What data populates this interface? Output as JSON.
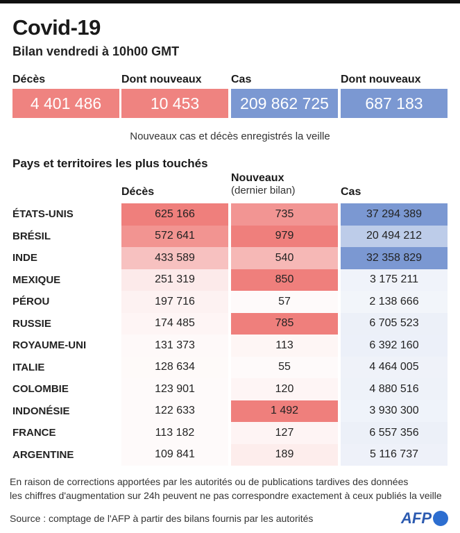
{
  "title": "Covid-19",
  "subtitle": "Bilan vendredi à 10h00 GMT",
  "colors": {
    "red": "#ef7f7c",
    "blue": "#7b98d2",
    "light_blue": "#e8ecf7"
  },
  "kpis": [
    {
      "label": "Décès",
      "value": "4 401 486",
      "color": "#ef8380"
    },
    {
      "label": "Dont nouveaux",
      "value": "10 453",
      "color": "#ef8380"
    },
    {
      "label": "Cas",
      "value": "209 862 725",
      "color": "#7b98d2"
    },
    {
      "label": "Dont nouveaux",
      "value": "687 183",
      "color": "#7b98d2"
    }
  ],
  "kpi_note": "Nouveaux cas et décès enregistrés la veille",
  "section_title": "Pays et territoires les plus touchés",
  "chart_data": {
    "type": "table",
    "title": "Pays et territoires les plus touchés",
    "columns": {
      "deaths": "Décès",
      "new": "Nouveaux",
      "new_sub": "(dernier bilan)",
      "cases": "Cas"
    },
    "rows": [
      {
        "country": "ÉTATS-UNIS",
        "deaths": "625 166",
        "new": "735",
        "cases": "37 294 389",
        "d": 625166,
        "n": 735,
        "c": 37294389
      },
      {
        "country": "BRÉSIL",
        "deaths": "572 641",
        "new": "979",
        "cases": "20 494 212",
        "d": 572641,
        "n": 979,
        "c": 20494212
      },
      {
        "country": "INDE",
        "deaths": "433 589",
        "new": "540",
        "cases": "32 358 829",
        "d": 433589,
        "n": 540,
        "c": 32358829
      },
      {
        "country": "MEXIQUE",
        "deaths": "251 319",
        "new": "850",
        "cases": "3 175 211",
        "d": 251319,
        "n": 850,
        "c": 3175211
      },
      {
        "country": "PÉROU",
        "deaths": "197 716",
        "new": "57",
        "cases": "2 138 666",
        "d": 197716,
        "n": 57,
        "c": 2138666
      },
      {
        "country": "RUSSIE",
        "deaths": "174 485",
        "new": "785",
        "cases": "6 705 523",
        "d": 174485,
        "n": 785,
        "c": 6705523
      },
      {
        "country": "ROYAUME-UNI",
        "deaths": "131 373",
        "new": "113",
        "cases": "6 392 160",
        "d": 131373,
        "n": 113,
        "c": 6392160
      },
      {
        "country": "ITALIE",
        "deaths": "128 634",
        "new": "55",
        "cases": "4 464 005",
        "d": 128634,
        "n": 55,
        "c": 4464005
      },
      {
        "country": "COLOMBIE",
        "deaths": "123 901",
        "new": "120",
        "cases": "4 880 516",
        "d": 123901,
        "n": 120,
        "c": 4880516
      },
      {
        "country": "INDONÉSIE",
        "deaths": "122 633",
        "new": "1 492",
        "cases": "3 930 300",
        "d": 122633,
        "n": 1492,
        "c": 3930300
      },
      {
        "country": "FRANCE",
        "deaths": "113 182",
        "new": "127",
        "cases": "6 557 356",
        "d": 113182,
        "n": 127,
        "c": 6557356
      },
      {
        "country": "ARGENTINE",
        "deaths": "109 841",
        "new": "189",
        "cases": "5 116 737",
        "d": 109841,
        "n": 189,
        "c": 5116737
      }
    ]
  },
  "footnote_1": "En raison de corrections apportées par les autorités ou de publications tardives des données",
  "footnote_2": "les chiffres d'augmentation sur 24h peuvent ne pas correspondre exactement à ceux publiés la veille",
  "source": "Source : comptage de l'AFP à partir des bilans fournis par les autorités",
  "logo_text": "AFP"
}
